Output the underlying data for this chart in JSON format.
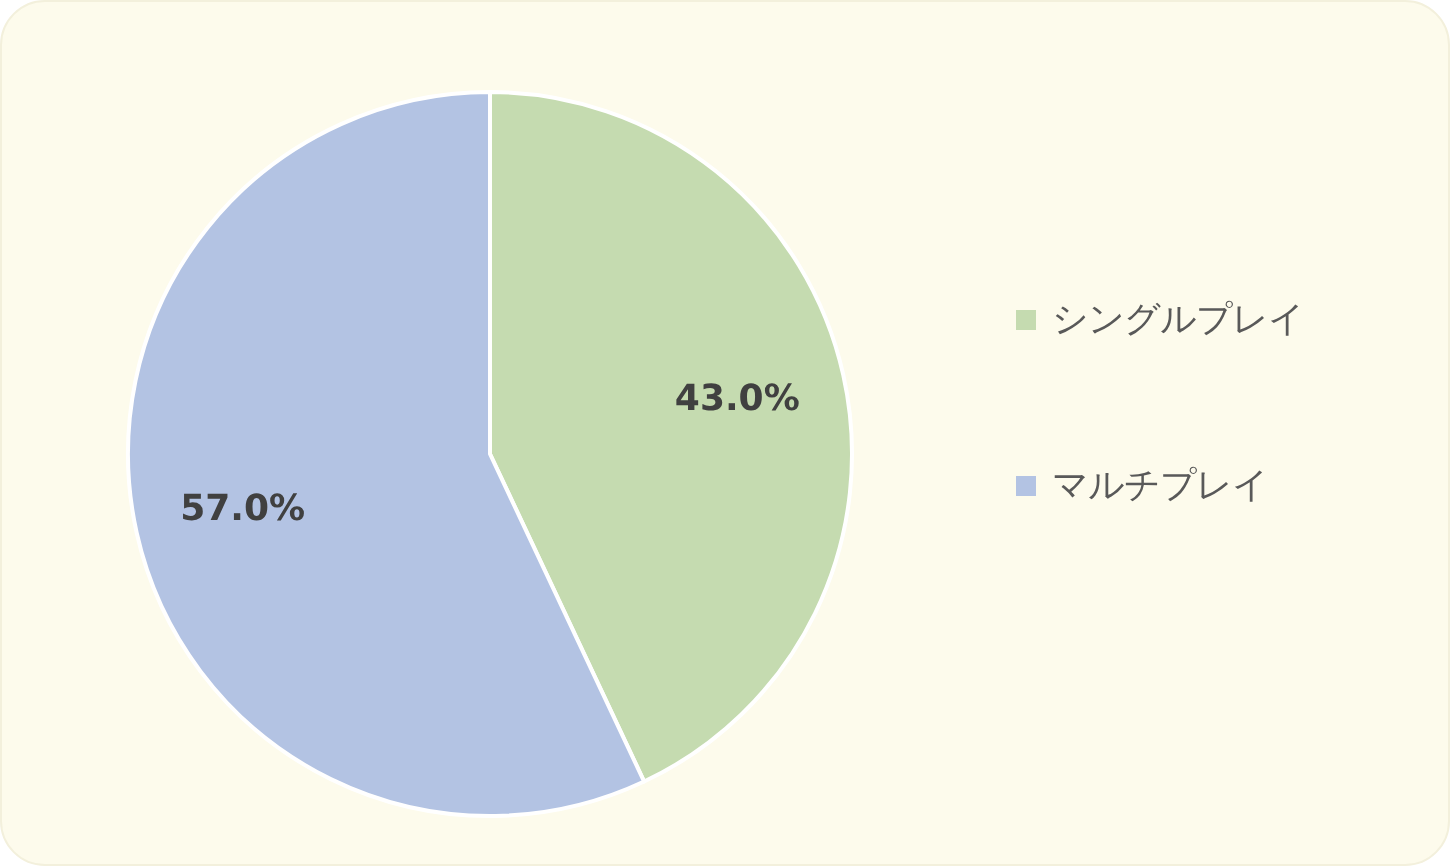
{
  "chart_data": {
    "type": "pie",
    "categories": [
      "シングルプレイ",
      "マルチプレイ"
    ],
    "values": [
      43.0,
      57.0
    ],
    "colors": [
      "#c5dbb0",
      "#b3c3e3"
    ],
    "value_labels": [
      "43.0%",
      "57.0%"
    ],
    "legend": "right"
  }
}
